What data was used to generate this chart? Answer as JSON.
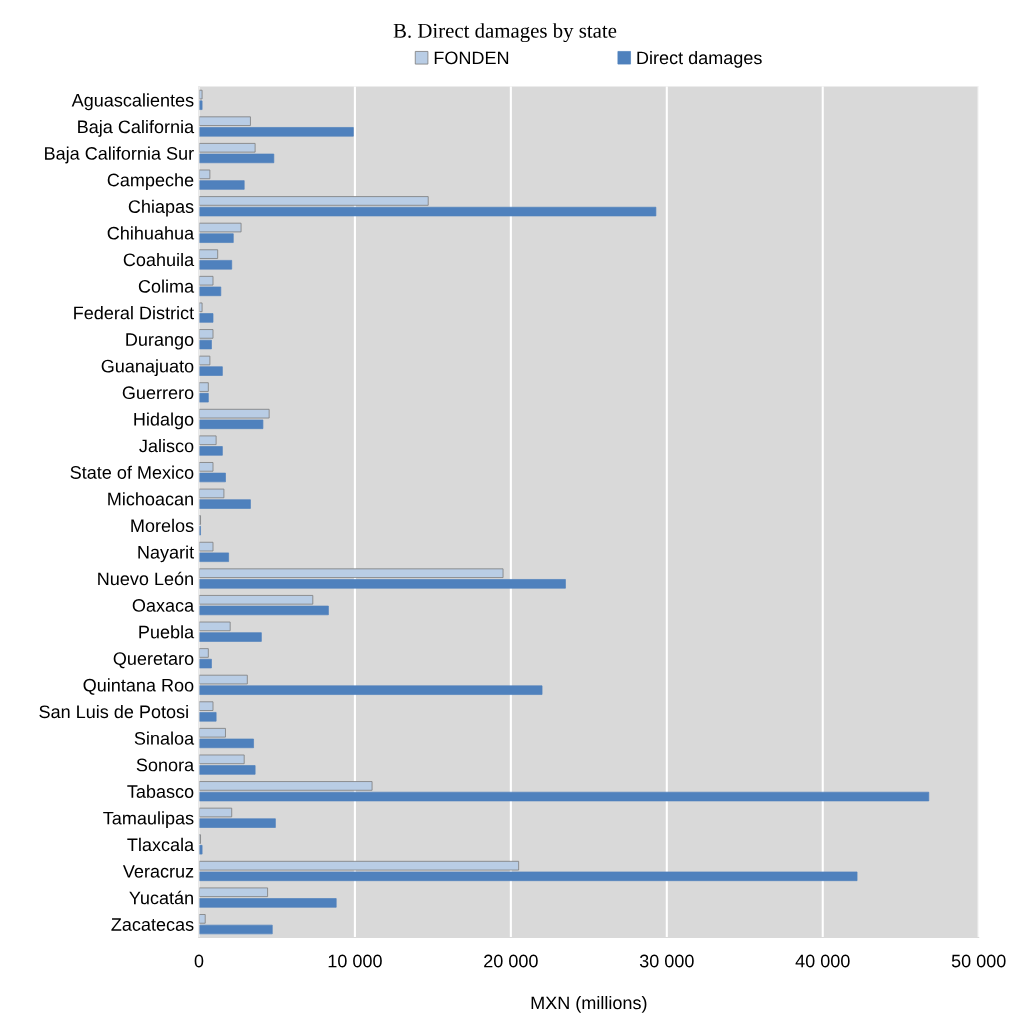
{
  "chart_data": {
    "type": "bar",
    "orientation": "horizontal",
    "title": "B. Direct damages by state",
    "xlabel": "MXN (millions)",
    "categories": [
      "Aguascalientes",
      "Baja California",
      "Baja California Sur",
      "Campeche",
      "Chiapas",
      "Chihuahua",
      "Coahuila",
      "Colima",
      "Federal District",
      "Durango",
      "Guanajuato",
      "Guerrero",
      "Hidalgo",
      "Jalisco",
      "State of Mexico",
      "Michoacan",
      "Morelos",
      "Nayarit",
      "Nuevo León",
      "Oaxaca",
      "Puebla",
      "Queretaro",
      "Quintana Roo",
      "San Luis de Potosi ",
      "Sinaloa",
      "Sonora",
      "Tabasco",
      "Tamaulipas",
      "Tlaxcala",
      "Veracruz",
      "Yucatán",
      "Zacatecas"
    ],
    "series": [
      {
        "name": "FONDEN",
        "color": "#b9cde5",
        "values": [
          200,
          3300,
          3600,
          700,
          14700,
          2700,
          1200,
          900,
          200,
          900,
          700,
          600,
          4500,
          1100,
          900,
          1600,
          100,
          900,
          19500,
          7300,
          2000,
          600,
          3100,
          900,
          1700,
          2900,
          11100,
          2100,
          100,
          20500,
          4400,
          400
        ]
      },
      {
        "name": "Direct damages",
        "color": "#4f81bd",
        "values": [
          200,
          9900,
          4800,
          2900,
          29300,
          2200,
          2100,
          1400,
          900,
          800,
          1500,
          600,
          4100,
          1500,
          1700,
          3300,
          100,
          1900,
          23500,
          8300,
          4000,
          800,
          22000,
          1100,
          3500,
          3600,
          46800,
          4900,
          200,
          42200,
          8800,
          4700
        ]
      }
    ],
    "xlim": [
      0,
      50000
    ],
    "xticks": [
      0,
      {
        "value": 10000,
        "label": "10 000"
      },
      {
        "value": 20000,
        "label": "20 000"
      },
      {
        "value": 30000,
        "label": "30 000"
      },
      {
        "value": 40000,
        "label": "40 000"
      },
      {
        "value": 50000,
        "label": "50 000"
      }
    ],
    "grid": "x",
    "legend": "top"
  }
}
